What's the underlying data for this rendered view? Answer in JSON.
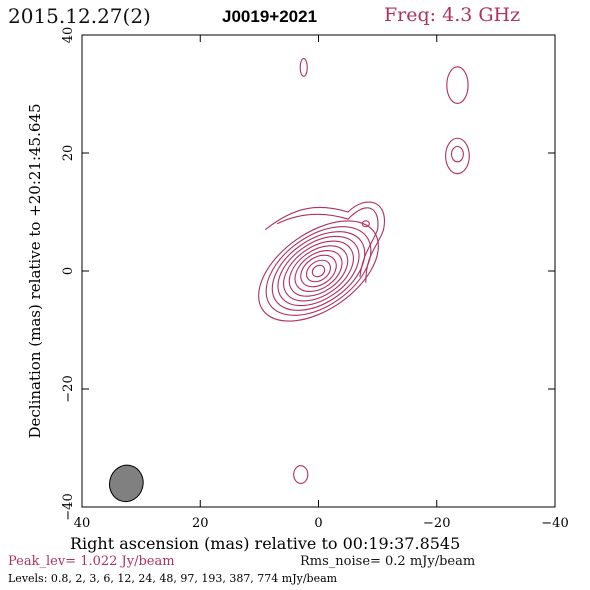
{
  "header": {
    "date": "2015.12.27(2)",
    "source": "J0019+2021",
    "freq": "Freq: 4.3 GHz"
  },
  "footer": {
    "peak": "Peak_lev=  1.022 Jy/beam",
    "rms": "Rms_noise=  0.2 mJy/beam",
    "levels": "Levels: 0.8,   2,   3,   6,  12,  24,  48,  97, 193, 387, 774 mJy/beam"
  },
  "chart_data": {
    "type": "contour",
    "xlabel": "Right ascension (mas) relative to 00:19:37.8545",
    "ylabel": "Declination (mas) relative to +20:21:45.645",
    "xlim": [
      40,
      -40
    ],
    "ylim": [
      -40,
      40
    ],
    "xticks": [
      40,
      20,
      0,
      -20,
      -40
    ],
    "yticks": [
      -40,
      -20,
      0,
      20,
      40
    ],
    "xtick_labels": [
      "40",
      "20",
      "0",
      "−20",
      "−40"
    ],
    "ytick_labels": [
      "−40",
      "−20",
      "0",
      "20",
      "40"
    ],
    "contour_levels_mJy": [
      0.8,
      2,
      3,
      6,
      12,
      24,
      48,
      97,
      193,
      387,
      774
    ],
    "peak_Jy_per_beam": 1.022,
    "rms_mJy_per_beam": 0.2,
    "contour_color": "#b03060",
    "beam": {
      "x": 32.5,
      "y": -36,
      "major": 6.2,
      "minor": 3.9,
      "pa_deg": 15,
      "fill": "#808080"
    },
    "core": {
      "x": 0,
      "y": 0,
      "pa_deg": 35,
      "rings": [
        {
          "a": 11.5,
          "b": 6.5
        },
        {
          "a": 10.0,
          "b": 5.9
        },
        {
          "a": 8.8,
          "b": 5.3
        },
        {
          "a": 7.7,
          "b": 4.7
        },
        {
          "a": 6.6,
          "b": 4.1
        },
        {
          "a": 5.5,
          "b": 3.5
        },
        {
          "a": 4.4,
          "b": 2.9
        },
        {
          "a": 3.3,
          "b": 2.3
        },
        {
          "a": 2.2,
          "b": 1.6
        },
        {
          "a": 1.1,
          "b": 0.9
        }
      ]
    },
    "jet_knot": {
      "x": -8,
      "y": 8
    },
    "islands": [
      {
        "x": 2.5,
        "y": 34.5,
        "rx": 0.6,
        "ry": 1.5
      },
      {
        "x": -23.5,
        "y": 31.5,
        "rx": 1.8,
        "ry": 3.1
      },
      {
        "x": -23.5,
        "y": 19.5,
        "rx": 2.0,
        "ry": 3.0
      },
      {
        "x": -23.5,
        "y": 19.8,
        "rx": 1.0,
        "ry": 1.3
      },
      {
        "x": 3.0,
        "y": -34.5,
        "rx": 1.2,
        "ry": 1.5
      }
    ]
  }
}
